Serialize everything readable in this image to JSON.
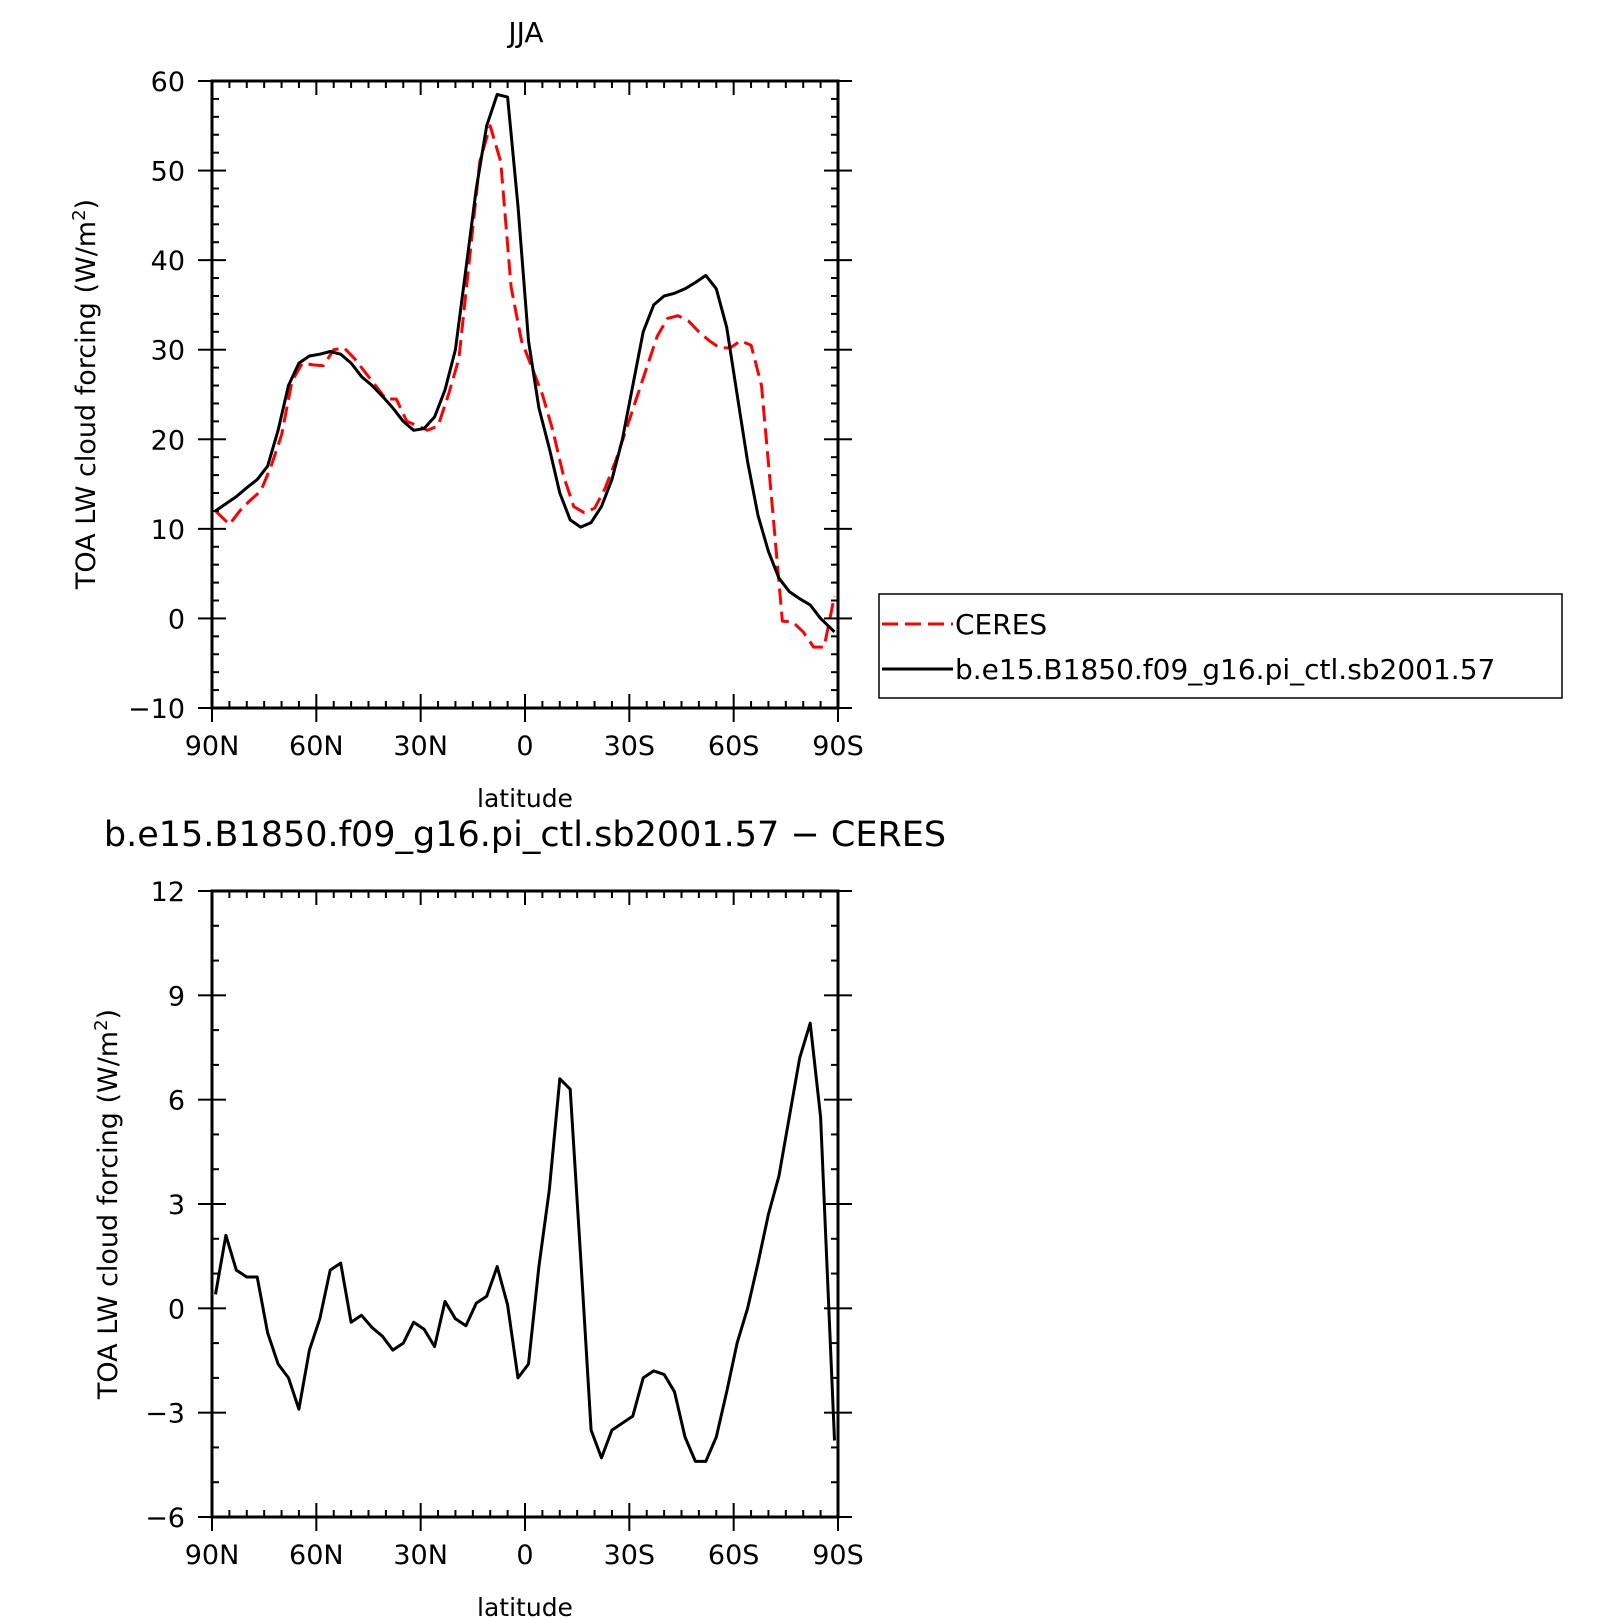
{
  "colors": {
    "axis": "#000000",
    "model_line": "#000000",
    "obs_line": "#ff0000"
  },
  "x_tick_labels": [
    "90N",
    "60N",
    "30N",
    "0",
    "30S",
    "60S",
    "90S"
  ],
  "chart_data": [
    {
      "type": "line",
      "title": "JJA",
      "xlabel": "latitude",
      "ylabel_prefix": "TOA LW cloud forcing (W/m",
      "ylabel_sup": "2",
      "ylabel_suffix": ")",
      "xlim": [
        -90,
        90
      ],
      "ylim": [
        -10,
        60
      ],
      "y_ticks": [
        -10,
        0,
        10,
        20,
        30,
        40,
        50,
        60
      ],
      "y_tick_labels": [
        "−10",
        "0",
        "10",
        "20",
        "30",
        "40",
        "50",
        "60"
      ],
      "grid": false,
      "legend_position": "right",
      "series": [
        {
          "name": "CERES",
          "style": "dashed",
          "color": "#ff0000",
          "x": [
            -89,
            -85,
            -82,
            -79,
            -76,
            -73,
            -70,
            -67,
            -64,
            -61,
            -58,
            -55,
            -52,
            -49,
            -46,
            -43,
            -40,
            -37,
            -34,
            -31,
            -28,
            -25,
            -22,
            -19,
            -16,
            -13,
            -10,
            -7,
            -4,
            -1,
            2,
            5,
            8,
            11,
            14,
            17,
            20,
            23,
            26,
            29,
            32,
            35,
            38,
            41,
            44,
            47,
            50,
            53,
            56,
            59,
            62,
            65,
            68,
            71,
            74,
            77,
            80,
            83,
            86,
            89
          ],
          "y": [
            12,
            10.5,
            12,
            13.2,
            14.2,
            17,
            20.5,
            26.5,
            28.5,
            28.3,
            28.2,
            30,
            30.2,
            29,
            27.5,
            26,
            24.5,
            24.5,
            22,
            21.5,
            21,
            21.5,
            25,
            29,
            40,
            51,
            55,
            51,
            37,
            31,
            28,
            25,
            21,
            16,
            12.5,
            11.8,
            12.3,
            14.5,
            17.5,
            21,
            24.5,
            28,
            31.5,
            33.5,
            33.8,
            33.2,
            32,
            31,
            30.2,
            30.2,
            31,
            30.5,
            26,
            13,
            -0.3,
            -0.4,
            -1.5,
            -3.2,
            -3.2,
            2.5
          ]
        },
        {
          "name": "b.e15.B1850.f09_g16.pi_ctl.sb2001.57",
          "style": "solid",
          "color": "#000000",
          "x": [
            -89,
            -86,
            -83,
            -80,
            -77,
            -74,
            -71,
            -68,
            -65,
            -62,
            -59,
            -56,
            -53,
            -50,
            -47,
            -44,
            -41,
            -38,
            -35,
            -32,
            -29,
            -26,
            -23,
            -20,
            -17,
            -14,
            -11,
            -8,
            -5,
            -2,
            1,
            4,
            7,
            10,
            13,
            16,
            19,
            22,
            25,
            28,
            31,
            34,
            37,
            40,
            43,
            46,
            49,
            52,
            55,
            58,
            61,
            64,
            67,
            70,
            73,
            76,
            79,
            82,
            85,
            89
          ],
          "y": [
            12,
            12.8,
            13.6,
            14.6,
            15.5,
            17,
            21,
            26,
            28.5,
            29.3,
            29.5,
            29.8,
            29.5,
            28.5,
            27,
            26,
            24.8,
            23.5,
            22,
            21,
            21.2,
            22.5,
            25.5,
            30,
            39,
            48,
            55,
            58.5,
            58.2,
            46,
            31,
            23.5,
            19,
            14,
            11,
            10.2,
            10.7,
            12.5,
            15.5,
            20,
            26,
            32,
            35,
            36,
            36.3,
            36.8,
            37.5,
            38.3,
            36.8,
            32.5,
            25,
            17.5,
            11.5,
            7.5,
            4.5,
            3,
            2.2,
            1.5,
            0,
            -1.5
          ]
        }
      ]
    },
    {
      "type": "line",
      "title": "b.e15.B1850.f09_g16.pi_ctl.sb2001.57 − CERES",
      "xlabel": "latitude",
      "ylabel_prefix": "TOA LW cloud forcing (W/m",
      "ylabel_sup": "2",
      "ylabel_suffix": ")",
      "xlim": [
        -90,
        90
      ],
      "ylim": [
        -6,
        12
      ],
      "y_ticks": [
        -6,
        -3,
        0,
        3,
        6,
        9,
        12
      ],
      "y_tick_labels": [
        "−6",
        "−3",
        "0",
        "3",
        "6",
        "9",
        "12"
      ],
      "grid": false,
      "series": [
        {
          "color": "#000000",
          "style": "solid",
          "x": [
            -89,
            -86,
            -83,
            -80,
            -77,
            -74,
            -71,
            -68,
            -65,
            -62,
            -59,
            -56,
            -53,
            -50,
            -47,
            -44,
            -41,
            -38,
            -35,
            -32,
            -29,
            -26,
            -23,
            -20,
            -17,
            -14,
            -11,
            -8,
            -5,
            -2,
            1,
            4,
            7,
            10,
            13,
            16,
            19,
            22,
            25,
            28,
            31,
            34,
            37,
            40,
            43,
            46,
            49,
            52,
            55,
            58,
            61,
            64,
            67,
            70,
            73,
            76,
            79,
            82,
            85,
            89
          ],
          "y": [
            0.4,
            2.1,
            1.1,
            0.9,
            0.9,
            -0.7,
            -1.6,
            -2.0,
            -2.9,
            -1.2,
            -0.3,
            1.1,
            1.3,
            -0.4,
            -0.2,
            -0.55,
            -0.8,
            -1.2,
            -1.0,
            -0.4,
            -0.6,
            -1.1,
            0.2,
            -0.3,
            -0.5,
            0.15,
            0.35,
            1.2,
            0.1,
            -2.0,
            -1.6,
            1.2,
            3.4,
            6.6,
            6.3,
            1.5,
            -3.5,
            -4.3,
            -3.5,
            -3.3,
            -3.1,
            -2.0,
            -1.8,
            -1.9,
            -2.4,
            -3.7,
            -4.4,
            -4.4,
            -3.7,
            -2.4,
            -1.0,
            0.0,
            1.3,
            2.7,
            3.8,
            5.5,
            7.2,
            8.2,
            5.5,
            -3.8
          ]
        }
      ]
    }
  ]
}
